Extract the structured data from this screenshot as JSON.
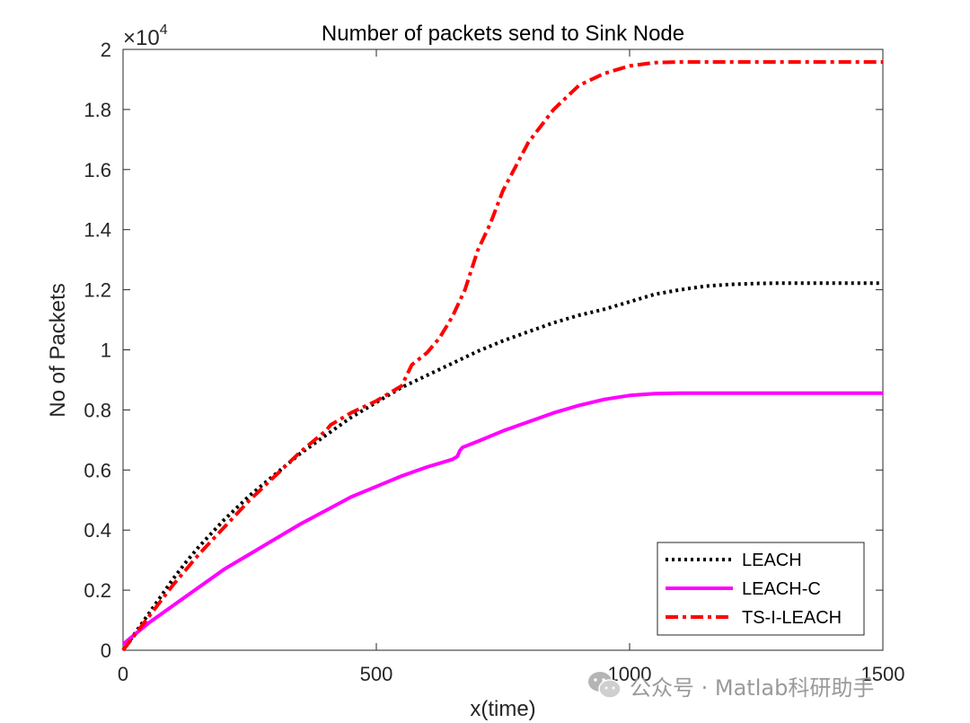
{
  "chart_data": {
    "type": "line",
    "title": "Number of packets send to Sink Node",
    "xlabel": "x(time)",
    "ylabel": "No of Packets",
    "xlim": [
      0,
      1500
    ],
    "ylim": [
      0,
      20000
    ],
    "y_exponent_label": "×10",
    "y_exponent_power": "4",
    "xticks": [
      0,
      500,
      1000,
      1500
    ],
    "xtick_labels": [
      "0",
      "500",
      "1000",
      "1500"
    ],
    "yticks": [
      0,
      2000,
      4000,
      6000,
      8000,
      10000,
      12000,
      14000,
      16000,
      18000,
      20000
    ],
    "ytick_labels": [
      "0",
      "0.2",
      "0.4",
      "0.6",
      "0.8",
      "1",
      "1.2",
      "1.4",
      "1.6",
      "1.8",
      "2"
    ],
    "grid": false,
    "legend_position": "bottom-right",
    "series": [
      {
        "name": "LEACH",
        "color": "#000000",
        "style": "dotted",
        "x": [
          0,
          25,
          50,
          75,
          100,
          125,
          150,
          175,
          200,
          225,
          250,
          275,
          300,
          325,
          350,
          375,
          400,
          425,
          450,
          475,
          500,
          550,
          600,
          650,
          700,
          750,
          800,
          850,
          900,
          950,
          1000,
          1050,
          1100,
          1150,
          1200,
          1250,
          1300,
          1400,
          1500
        ],
        "y": [
          0,
          600,
          1200,
          1800,
          2400,
          2950,
          3450,
          3900,
          4350,
          4750,
          5150,
          5500,
          5850,
          6200,
          6550,
          6850,
          7150,
          7450,
          7750,
          8000,
          8250,
          8750,
          9150,
          9550,
          9950,
          10300,
          10600,
          10900,
          11150,
          11350,
          11600,
          11850,
          12000,
          12120,
          12180,
          12210,
          12220,
          12220,
          12220
        ]
      },
      {
        "name": "LEACH-C",
        "color": "#ff00ff",
        "style": "solid",
        "x": [
          0,
          25,
          50,
          100,
          150,
          200,
          250,
          300,
          350,
          400,
          450,
          500,
          550,
          600,
          650,
          660,
          665,
          670,
          700,
          750,
          800,
          850,
          900,
          950,
          1000,
          1050,
          1100,
          1200,
          1300,
          1400,
          1500
        ],
        "y": [
          200,
          550,
          900,
          1500,
          2100,
          2700,
          3200,
          3700,
          4200,
          4650,
          5100,
          5450,
          5800,
          6100,
          6350,
          6450,
          6650,
          6750,
          6950,
          7300,
          7600,
          7900,
          8150,
          8350,
          8480,
          8540,
          8560,
          8560,
          8560,
          8560,
          8560
        ]
      },
      {
        "name": "TS-I-LEACH",
        "color": "#ff0000",
        "style": "dashdot",
        "x": [
          0,
          25,
          50,
          75,
          100,
          150,
          200,
          250,
          300,
          350,
          400,
          410,
          430,
          450,
          500,
          540,
          550,
          570,
          600,
          625,
          650,
          675,
          700,
          725,
          750,
          800,
          850,
          900,
          950,
          1000,
          1050,
          1100,
          1150,
          1200,
          1300,
          1400,
          1500
        ],
        "y": [
          0,
          550,
          1100,
          1650,
          2200,
          3200,
          4100,
          5000,
          5800,
          6600,
          7300,
          7500,
          7700,
          7900,
          8300,
          8700,
          8800,
          9500,
          9900,
          10400,
          11100,
          12000,
          13300,
          14200,
          15300,
          16900,
          18000,
          18800,
          19200,
          19450,
          19560,
          19580,
          19580,
          19580,
          19580,
          19580,
          19580
        ]
      }
    ]
  },
  "watermark": {
    "text": "公众号 · Matlab科研助手"
  }
}
